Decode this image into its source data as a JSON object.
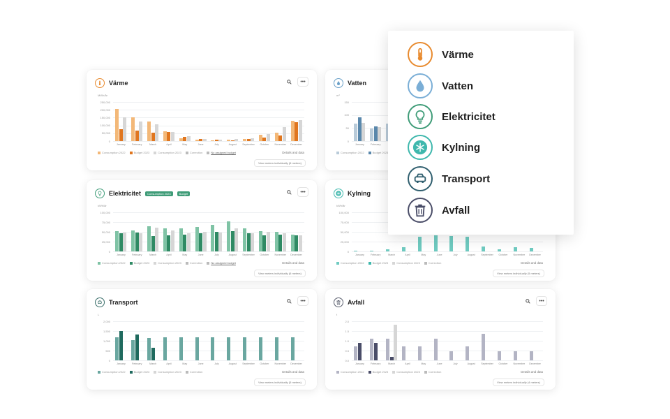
{
  "cards": [
    {
      "key": "varme",
      "title": "Värme",
      "icon": "thermometer-icon",
      "icon_color": "#e88a2e",
      "ylabel": "MWh/år",
      "ymax": 250000,
      "yticks": [
        "250,000",
        "200,000",
        "150,000",
        "100,000",
        "50,000",
        "0"
      ],
      "colors": [
        "#f3b878",
        "#e0761f",
        "#d6d6d6"
      ],
      "categories": [
        "January",
        "February",
        "March",
        "April",
        "May",
        "June",
        "July",
        "August",
        "September",
        "October",
        "November",
        "December"
      ],
      "series": [
        [
          205000,
          150000,
          127000,
          62000,
          20000,
          10000,
          5000,
          8000,
          15000,
          38000,
          55000,
          130000
        ],
        [
          75000,
          65000,
          55000,
          60000,
          28000,
          12000,
          8000,
          6000,
          12000,
          22000,
          35000,
          120000
        ],
        [
          150000,
          125000,
          105000,
          60000,
          30000,
          15000,
          10000,
          12000,
          20000,
          45000,
          88000,
          135000
        ]
      ],
      "legend": [
        "Consumption 2022",
        "Budget 2023",
        "Consumption 2023",
        "Correction",
        "No assigned budget"
      ],
      "details": "Details and data",
      "meters": "View meters individually (6 meters)"
    },
    {
      "key": "vatten",
      "title": "Vatten",
      "icon": "water-drop-icon",
      "icon_color": "#6aa0c8",
      "ylabel": "m³",
      "ymax": 200,
      "yticks": [
        "150",
        "100",
        "50",
        "0"
      ],
      "colors": [
        "#b9cbd9",
        "#5a88ac",
        "#d6d6d6"
      ],
      "categories": [
        "January",
        "February",
        "March",
        "April",
        "May"
      ],
      "series": [
        [
          90,
          65,
          90,
          60,
          0
        ],
        [
          120,
          75,
          82,
          70,
          0
        ],
        [
          92,
          70,
          88,
          60,
          0
        ]
      ],
      "legend": [
        "Consumption 2022",
        "Budget 2023"
      ],
      "details": "",
      "meters": ""
    },
    {
      "key": "el",
      "title": "Elektricitet",
      "icon": "lightbulb-icon",
      "icon_color": "#3f9c78",
      "badges": [
        "Consumption 2023",
        "Budget"
      ],
      "ylabel": "kWh/år",
      "ymax": 120000,
      "yticks": [
        "100,000",
        "75,000",
        "50,000",
        "25,000",
        "0"
      ],
      "colors": [
        "#7fc3a5",
        "#2f8a64",
        "#d6d6d6"
      ],
      "categories": [
        "January",
        "February",
        "March",
        "April",
        "May",
        "June",
        "July",
        "August",
        "September",
        "October",
        "November",
        "December"
      ],
      "series": [
        [
          63000,
          65000,
          78000,
          71000,
          70000,
          75000,
          82000,
          93000,
          70000,
          62000,
          60000,
          52000
        ],
        [
          55000,
          58000,
          48000,
          50000,
          52000,
          55000,
          60000,
          62000,
          55000,
          50000,
          52000,
          50000
        ],
        [
          58000,
          55000,
          72000,
          64000,
          55000,
          60000,
          58000,
          70000,
          55000,
          60000,
          55000,
          50000
        ]
      ],
      "legend": [
        "Consumption 2022",
        "Budget 2023",
        "Consumption 2023",
        "Correction",
        "No assigned budget"
      ],
      "details": "Details and data",
      "meters": "View meters individually (6 meters)"
    },
    {
      "key": "kyl",
      "title": "Kylning",
      "icon": "snowflake-icon",
      "icon_color": "#3fb8ad",
      "ylabel": "kWh/år",
      "ymax": 120000,
      "yticks": [
        "100,000",
        "75,000",
        "50,000",
        "25,000",
        "0"
      ],
      "colors": [
        "#6fcbc1",
        "#3fb8ad",
        "#d6d6d6"
      ],
      "categories": [
        "January",
        "February",
        "March",
        "April",
        "May",
        "June",
        "July",
        "August",
        "September",
        "October",
        "November",
        "December"
      ],
      "series": [
        [
          2000,
          3000,
          6000,
          12000,
          45000,
          50000,
          48000,
          46000,
          16000,
          6000,
          12000,
          10000
        ],
        [
          0,
          0,
          0,
          0,
          0,
          0,
          0,
          0,
          0,
          0,
          0,
          0
        ],
        [
          0,
          0,
          0,
          0,
          0,
          0,
          0,
          0,
          0,
          0,
          0,
          0
        ]
      ],
      "legend": [
        "Consumption 2022",
        "Budget 2023",
        "Consumption 2023",
        "Correction"
      ],
      "details": "Details and data",
      "meters": "View meters individually (5 meters)"
    },
    {
      "key": "trans",
      "title": "Transport",
      "icon": "car-icon",
      "icon_color": "#3a6e6a",
      "ylabel": "L",
      "ymax": 2200,
      "yticks": [
        "2,000",
        "1,500",
        "1,000",
        "500",
        "0"
      ],
      "colors": [
        "#6aa7a0",
        "#1f6a5e",
        "#d6d6d6"
      ],
      "categories": [
        "January",
        "February",
        "March",
        "April",
        "May",
        "June",
        "July",
        "August",
        "September",
        "October",
        "November",
        "December"
      ],
      "series": [
        [
          1300,
          1150,
          1250,
          1300,
          1280,
          1300,
          1300,
          1300,
          1300,
          1300,
          1300,
          1300
        ],
        [
          1650,
          1470,
          700,
          0,
          0,
          0,
          0,
          0,
          0,
          0,
          0,
          0
        ],
        [
          0,
          0,
          0,
          0,
          0,
          0,
          0,
          0,
          0,
          0,
          0,
          0
        ]
      ],
      "legend": [
        "Consumption 2022",
        "Budget 2023",
        "Consumption 2023",
        "Correction"
      ],
      "details": "Details and data",
      "meters": "View meters individually (5 meters)"
    },
    {
      "key": "avf",
      "title": "Avfall",
      "icon": "trash-icon",
      "icon_color": "#5a5f6e",
      "ylabel": "t",
      "ymax": 2.2,
      "yticks": [
        "2.0",
        "1.5",
        "1.0",
        "0.5",
        "0.0"
      ],
      "colors": [
        "#b3b4c4",
        "#4a4d68",
        "#d6d6d6"
      ],
      "categories": [
        "January",
        "February",
        "March",
        "April",
        "May",
        "June",
        "July",
        "August",
        "September",
        "October",
        "November",
        "December"
      ],
      "series": [
        [
          0.8,
          1.2,
          1.2,
          0.8,
          0.8,
          1.2,
          0.5,
          0.8,
          1.5,
          0.5,
          0.5,
          0.5
        ],
        [
          1.0,
          1.0,
          0.2,
          0.0,
          0.0,
          0.0,
          0.0,
          0.0,
          0.0,
          0.0,
          0.0,
          0.0
        ],
        [
          0,
          0,
          2.0,
          0,
          0,
          0,
          0,
          0,
          0,
          0,
          0,
          0
        ]
      ],
      "legend": [
        "Consumption 2022",
        "Budget 2023",
        "Consumption 2023",
        "Correction"
      ],
      "details": "Details and data",
      "meters": "View meters individually (4 meters)"
    }
  ],
  "popup": {
    "items": [
      {
        "label": "Värme",
        "icon": "thermometer-icon",
        "color": "#e88a2e"
      },
      {
        "label": "Vatten",
        "icon": "water-drop-icon",
        "color": "#7aaed6"
      },
      {
        "label": "Elektricitet",
        "icon": "lightbulb-icon",
        "color": "#3f9c78"
      },
      {
        "label": "Kylning",
        "icon": "snowflake-icon",
        "color": "#3fb8ad"
      },
      {
        "label": "Transport",
        "icon": "car-icon",
        "color": "#2f5e6e"
      },
      {
        "label": "Avfall",
        "icon": "trash-icon",
        "color": "#4a4d68"
      }
    ]
  }
}
